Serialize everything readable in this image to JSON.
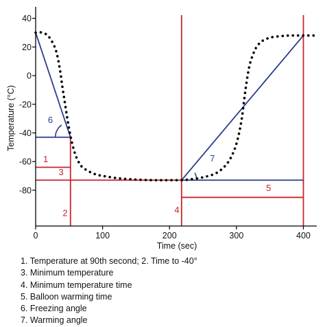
{
  "chart_data": {
    "type": "line",
    "xlabel": "Time (sec)",
    "ylabel": "Temperature (°C)",
    "xlim": [
      0,
      420
    ],
    "ylim": [
      -105,
      48
    ],
    "xticks": [
      0,
      100,
      200,
      300,
      400
    ],
    "yticks": [
      40,
      20,
      0,
      -20,
      -40,
      -60,
      -80
    ],
    "grid": false,
    "series": [
      {
        "style": "dotted",
        "color": "#000000",
        "x": [
          0,
          10,
          20,
          30,
          36,
          40,
          44,
          48,
          52,
          56,
          60,
          65,
          70,
          80,
          90,
          100,
          120,
          140,
          160,
          180,
          200,
          210,
          218,
          230,
          250,
          270,
          285,
          295,
          302,
          308,
          312,
          316,
          320,
          325,
          330,
          338,
          350,
          365,
          380,
          395,
          410,
          420
        ],
        "y": [
          30,
          30,
          27,
          18,
          5,
          -8,
          -20,
          -32,
          -42,
          -50,
          -56,
          -61,
          -64,
          -67,
          -69,
          -70,
          -71.5,
          -72.3,
          -72.8,
          -73,
          -73,
          -73,
          -73,
          -72.5,
          -71,
          -68,
          -62,
          -54,
          -44,
          -30,
          -15,
          -2,
          8,
          15,
          20,
          24,
          26.5,
          27.5,
          28,
          28,
          28,
          28
        ]
      }
    ],
    "reference_lines": [
      {
        "kind": "vertical",
        "x": 52,
        "y_from": -105,
        "y_to": -43,
        "color": "#c8242c"
      },
      {
        "kind": "vertical",
        "x": 218,
        "y_from": -105,
        "y_to": 56,
        "color": "#c8242c"
      },
      {
        "kind": "vertical",
        "x": 400,
        "y_from": -105,
        "y_to": 56,
        "color": "#c8242c"
      },
      {
        "kind": "horizontal",
        "y": -64,
        "x_from": 0,
        "x_to": 52,
        "color": "#c8242c"
      },
      {
        "kind": "horizontal",
        "y": -73,
        "x_from": 0,
        "x_to": 218,
        "color": "#c8242c"
      },
      {
        "kind": "horizontal",
        "y": -85,
        "x_from": 218,
        "x_to": 400,
        "color": "#c8242c"
      },
      {
        "kind": "horizontal",
        "y": -43,
        "x_from": 0,
        "x_to": 52,
        "color": "#2a3c8c"
      },
      {
        "kind": "segment",
        "x1": 0,
        "y1": 30,
        "x2": 52,
        "y2": -43,
        "color": "#2a3c8c"
      },
      {
        "kind": "horizontal",
        "y": -73,
        "x_from": 218,
        "x_to": 400,
        "color": "#2a3c8c"
      },
      {
        "kind": "segment",
        "x1": 218,
        "y1": -73,
        "x2": 400,
        "y2": 28,
        "color": "#2a3c8c"
      }
    ],
    "angle_arcs": [
      {
        "cx": 52,
        "cy": -43,
        "r": 0,
        "theta_from": 126,
        "theta_to": 180,
        "color": "#2a3c8c"
      },
      {
        "cx": 218,
        "cy": -73,
        "r": 0,
        "theta_from": 0,
        "theta_to": 29,
        "color": "#2a3c8c"
      }
    ],
    "annotations": [
      {
        "text": "1",
        "x": 15,
        "y": -60.5,
        "color": "#c8242c"
      },
      {
        "text": "3",
        "x": 38,
        "y": -69.5,
        "color": "#c8242c"
      },
      {
        "text": "2",
        "x": 44,
        "y": -98,
        "color": "#c8242c"
      },
      {
        "text": "4",
        "x": 211,
        "y": -96,
        "color": "#c8242c"
      },
      {
        "text": "5",
        "x": 348,
        "y": -80.5,
        "color": "#c8242c"
      },
      {
        "text": "6",
        "x": 22,
        "y": -33,
        "color": "#2a3c8c"
      },
      {
        "text": "7",
        "x": 264,
        "y": -60,
        "color": "#2a3c8c"
      }
    ],
    "caption": [
      "1. Temperature at 90th second; 2. Time to -40°",
      "3. Minimum temperature",
      "4. Minimum temperature time",
      "5. Balloon warming time",
      "6. Freezing angle",
      "7. Warming angle"
    ]
  }
}
